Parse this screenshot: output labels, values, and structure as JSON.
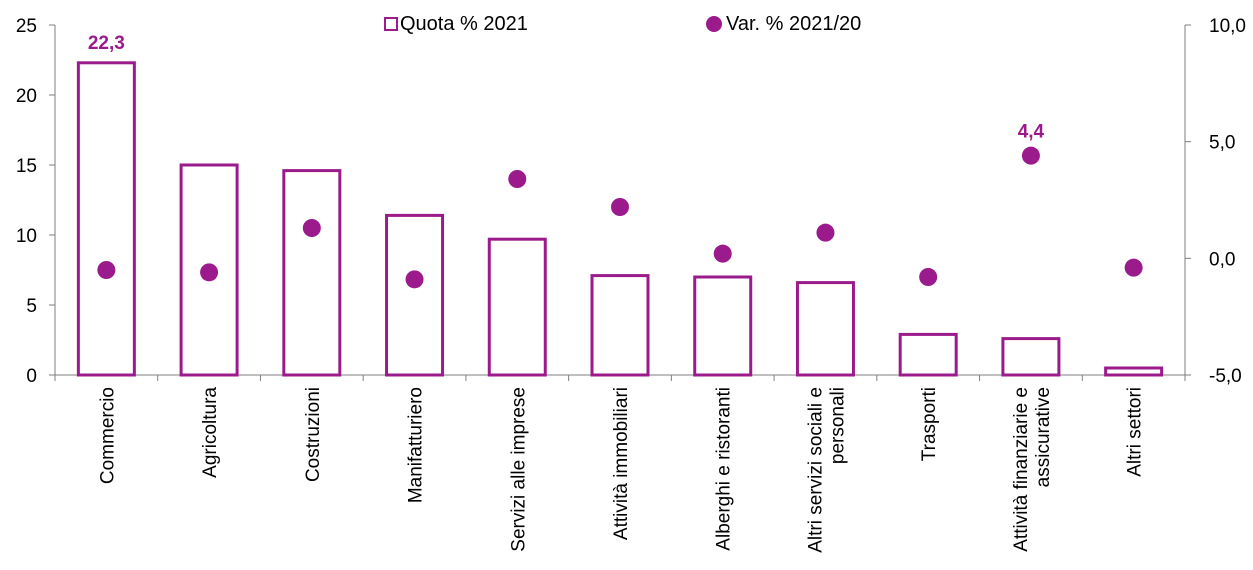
{
  "colors": {
    "accent": "#9c1b8c",
    "axis": "#7f7f7f",
    "text": "#000000",
    "background": "#ffffff"
  },
  "legend": {
    "bar_label": "Quota % 2021",
    "dot_label": "Var. % 2021/20"
  },
  "chart_data": {
    "type": "bar",
    "categories": [
      [
        "Commercio"
      ],
      [
        "Agricoltura"
      ],
      [
        "Costruzioni"
      ],
      [
        "Manifatturiero"
      ],
      [
        "Servizi alle imprese"
      ],
      [
        "Attività immobiliari"
      ],
      [
        "Alberghi e ristoranti"
      ],
      [
        "Altri servizi sociali e",
        "personali"
      ],
      [
        "Trasporti"
      ],
      [
        "Attività finanziarie e",
        "assicurative"
      ],
      [
        "Altri settori"
      ]
    ],
    "series": [
      {
        "name": "Quota % 2021",
        "type": "bar",
        "axis": "left",
        "values": [
          22.3,
          15.0,
          14.6,
          11.4,
          9.7,
          7.1,
          7.0,
          6.6,
          2.9,
          2.6,
          0.5
        ]
      },
      {
        "name": "Var. % 2021/20",
        "type": "scatter",
        "axis": "right",
        "values": [
          -0.5,
          -0.6,
          1.3,
          -0.9,
          3.4,
          2.2,
          0.2,
          1.1,
          -0.8,
          4.4,
          -0.4
        ]
      }
    ],
    "data_labels": [
      {
        "series": 0,
        "index": 0,
        "text": "22,3"
      },
      {
        "series": 1,
        "index": 9,
        "text": "4,4"
      }
    ],
    "y_left": {
      "min": 0,
      "max": 25,
      "step": 5,
      "ticks": [
        "0",
        "5",
        "10",
        "15",
        "20",
        "25"
      ]
    },
    "y_right": {
      "min": -5,
      "max": 10,
      "step": 5,
      "ticks": [
        "-5,0",
        "0,0",
        "5,0",
        "10,0"
      ]
    },
    "grid": false,
    "legend_position": "top"
  }
}
